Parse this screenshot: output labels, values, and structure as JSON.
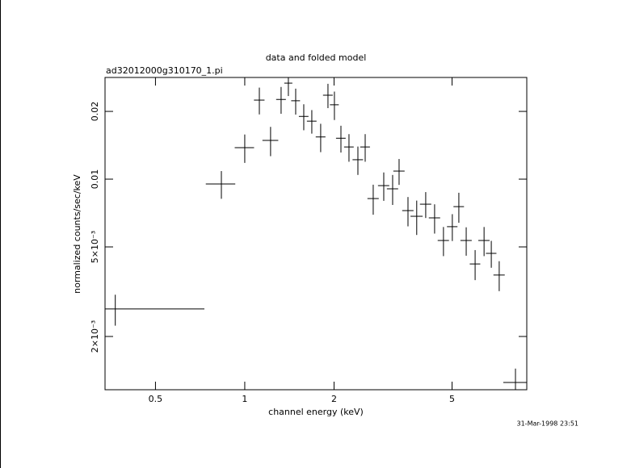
{
  "chart_data": {
    "type": "errorbar",
    "title": "data and folded model",
    "subtitle": "ad32012000g310170_1.pi",
    "x_label": "channel energy (keV)",
    "y_label": "normalized counts/sec/keV",
    "timestamp": "31-Mar-1998 23:51",
    "x_log": true,
    "y_log": true,
    "color": "#000000",
    "xlim": [
      0.338,
      8.93
    ],
    "ylim": [
      0.00116,
      0.0283
    ],
    "xticks": [
      0.5,
      1,
      2,
      5
    ],
    "yticks": [
      {
        "value": 0.002,
        "label": "2×10⁻³"
      },
      {
        "value": 0.005,
        "label": "5×10⁻³"
      },
      0.01,
      0.02
    ],
    "x": [
      0.366,
      0.834,
      1.0,
      1.12,
      1.222,
      1.326,
      1.403,
      1.485,
      1.581,
      1.683,
      1.803,
      1.908,
      2.006,
      2.11,
      2.246,
      2.407,
      2.547,
      2.711,
      2.942,
      3.152,
      3.314,
      3.551,
      3.8,
      4.075,
      4.366,
      4.677,
      5.01,
      5.27,
      5.58,
      5.98,
      6.41,
      6.78,
      7.21,
      8.18
    ],
    "xerr": [
      0.365,
      0.095,
      0.075,
      0.046,
      0.075,
      0.05,
      0.044,
      0.051,
      0.059,
      0.063,
      0.068,
      0.072,
      0.069,
      0.079,
      0.084,
      0.098,
      0.096,
      0.119,
      0.129,
      0.138,
      0.145,
      0.156,
      0.179,
      0.179,
      0.192,
      0.205,
      0.204,
      0.215,
      0.245,
      0.244,
      0.281,
      0.276,
      0.316,
      0.74
    ],
    "values": [
      0.00265,
      0.00952,
      0.0138,
      0.02245,
      0.01486,
      0.0226,
      0.0267,
      0.0223,
      0.019,
      0.0181,
      0.0154,
      0.0236,
      0.0214,
      0.0152,
      0.0139,
      0.0122,
      0.0139,
      0.0082,
      0.00936,
      0.00906,
      0.01086,
      0.00725,
      0.00684,
      0.00774,
      0.00673,
      0.00534,
      0.00615,
      0.00755,
      0.00534,
      0.0042,
      0.00534,
      0.00468,
      0.00375,
      0.00125
    ],
    "yerr": [
      0.000416,
      0.00134,
      0.00199,
      0.00306,
      0.00221,
      0.00308,
      0.0033,
      0.00294,
      0.00251,
      0.00217,
      0.00222,
      0.00292,
      0.00309,
      0.00207,
      0.00195,
      0.00176,
      0.00195,
      0.00125,
      0.00135,
      0.00138,
      0.00143,
      0.00108,
      0.00119,
      0.00102,
      0.001,
      0.00079,
      0.00084,
      0.00115,
      0.00077,
      0.00064,
      0.00079,
      0.00064,
      0.00057,
      0.00019
    ]
  }
}
